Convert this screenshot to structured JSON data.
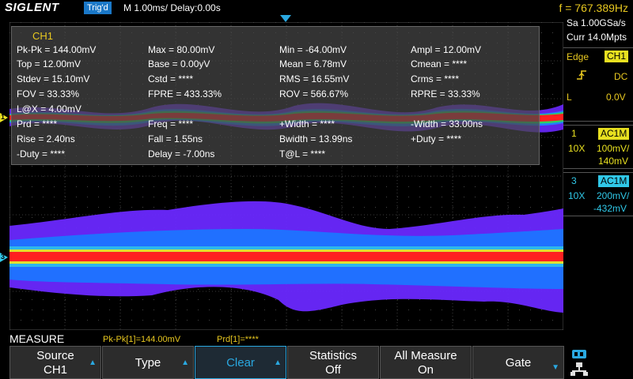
{
  "header": {
    "brand": "SIGLENT",
    "trigger_state": "Trig'd",
    "timebase": "M 1.00ms/ Delay:0.00s",
    "frequency": "f = 767.389Hz"
  },
  "measure_panel": {
    "channel": "CH1",
    "rows": [
      [
        "Pk-Pk = 144.00mV",
        "Max = 80.00mV",
        "Min = -64.00mV",
        "Ampl = 12.00mV"
      ],
      [
        "Top = 12.00mV",
        "Base = 0.00yV",
        "Mean = 6.78mV",
        "Cmean = ****"
      ],
      [
        "Stdev = 15.10mV",
        "Cstd = ****",
        "RMS = 16.55mV",
        "Crms = ****"
      ],
      [
        "FOV = 33.33%",
        "FPRE = 433.33%",
        "ROV = 566.67%",
        "RPRE = 33.33%"
      ],
      [
        "L@X = 4.00mV",
        "",
        "",
        ""
      ],
      [
        "Prd = ****",
        "Freq = ****",
        "+Width = ****",
        "-Width = 33.00ns"
      ],
      [
        "Rise = 2.40ns",
        "Fall = 1.55ns",
        "Bwidth = 13.99ns",
        "+Duty = ****"
      ],
      [
        "-Duty = ****",
        "Delay = -7.00ns",
        "T@L = ****",
        ""
      ]
    ]
  },
  "channel_markers": {
    "ch1": "1",
    "ch3": "3"
  },
  "right_panel": {
    "sample_rate": "Sa 1.00GSa/s",
    "memory": "Curr 14.0Mpts",
    "trigger": {
      "type": "Edge",
      "source": "CH1",
      "coupling": "DC",
      "level_label": "L",
      "level_value": "0.0V"
    },
    "channels": [
      {
        "number": "1",
        "coupling": "AC1M",
        "probe": "10X",
        "scale": "100mV/",
        "offset": "140mV",
        "color": "#e8e020"
      },
      {
        "number": "3",
        "coupling": "AC1M",
        "probe": "10X",
        "scale": "200mV/",
        "offset": "-432mV",
        "color": "#30c8e8"
      }
    ]
  },
  "footer": {
    "menu_title": "MEASURE",
    "stat1": "Pk-Pk[1]=144.00mV",
    "stat2": "Prd[1]=****"
  },
  "softkeys": [
    {
      "line1": "Source",
      "line2": "CH1",
      "arrow": true,
      "active": false
    },
    {
      "line1": "Type",
      "line2": "",
      "arrow": true,
      "active": false
    },
    {
      "line1": "Clear",
      "line2": "",
      "arrow": true,
      "active": true
    },
    {
      "line1": "Statistics",
      "line2": "Off",
      "arrow": false,
      "active": false
    },
    {
      "line1": "All Measure",
      "line2": "On",
      "arrow": false,
      "active": false
    },
    {
      "line1": "Gate",
      "line2": "",
      "arrow": true,
      "active": false
    }
  ],
  "colors": {
    "accent": "#2aa8e0",
    "ch1": "#e8e020",
    "ch3": "#30c8e8",
    "trace_core": "#ff2020",
    "trace_envelope": "#7030ff"
  },
  "icons": [
    "usb-icon",
    "network-icon"
  ]
}
